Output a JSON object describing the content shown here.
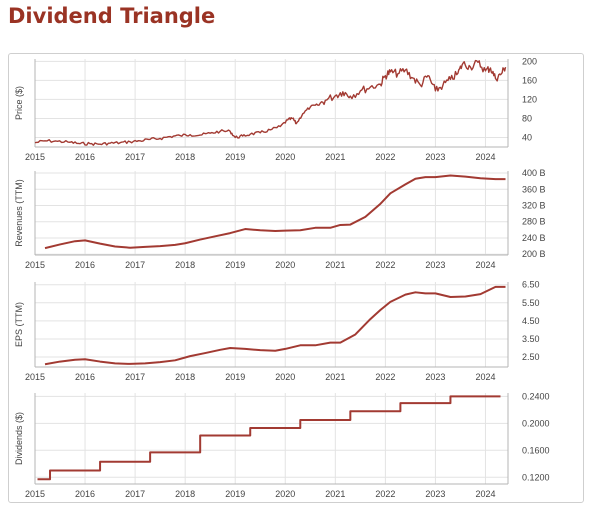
{
  "page": {
    "title": "Dividend Triangle"
  },
  "colors": {
    "accent": "#9a3324",
    "line": "#a23a32",
    "grid": "#e3e3e3",
    "axis": "#b5b5b5"
  },
  "x_ticks": [
    "2015",
    "2016",
    "2017",
    "2018",
    "2019",
    "2020",
    "2021",
    "2022",
    "2023",
    "2024"
  ],
  "chart_data": [
    {
      "type": "line",
      "id": "price",
      "ylabel": "Price ($)",
      "xlim": [
        2015.0,
        2024.45
      ],
      "ylim": [
        20,
        205
      ],
      "yticks": [
        40,
        80,
        120,
        160,
        200
      ],
      "yticklabels": [
        "40",
        "80",
        "120",
        "160",
        "200"
      ],
      "x": [
        2015.0,
        2015.2,
        2015.45,
        2015.7,
        2015.9,
        2016.1,
        2016.3,
        2016.5,
        2016.7,
        2016.9,
        2017.1,
        2017.3,
        2017.5,
        2017.7,
        2017.9,
        2018.1,
        2018.3,
        2018.5,
        2018.7,
        2018.9,
        2019.0,
        2019.15,
        2019.3,
        2019.5,
        2019.7,
        2019.9,
        2020.05,
        2020.15,
        2020.22,
        2020.35,
        2020.5,
        2020.65,
        2020.8,
        2021.0,
        2021.15,
        2021.3,
        2021.5,
        2021.7,
        2021.9,
        2022.0,
        2022.1,
        2022.25,
        2022.4,
        2022.55,
        2022.7,
        2022.85,
        2023.0,
        2023.15,
        2023.3,
        2023.45,
        2023.55,
        2023.7,
        2023.85,
        2024.0,
        2024.1,
        2024.2,
        2024.3,
        2024.4
      ],
      "y": [
        29,
        33,
        32,
        30,
        27,
        27,
        26,
        28,
        29,
        31,
        33,
        36,
        38,
        42,
        44,
        46,
        45,
        49,
        53,
        53,
        40,
        43,
        47,
        50,
        56,
        63,
        77,
        80,
        69,
        90,
        104,
        108,
        118,
        128,
        136,
        127,
        138,
        146,
        152,
        170,
        178,
        174,
        182,
        165,
        150,
        170,
        138,
        150,
        162,
        175,
        196,
        188,
        198,
        180,
        186,
        164,
        172,
        188
      ]
    },
    {
      "type": "line",
      "id": "revenues",
      "ylabel": "Revenues (TTM)",
      "xlim": [
        2015.0,
        2024.45
      ],
      "ylim": [
        198,
        405
      ],
      "yticks": [
        200,
        240,
        280,
        320,
        360,
        400
      ],
      "yticklabels": [
        "200 B",
        "240 B",
        "280 B",
        "320 B",
        "360 B",
        "400 B"
      ],
      "x": [
        2015.2,
        2015.5,
        2015.8,
        2016.0,
        2016.3,
        2016.6,
        2016.9,
        2017.2,
        2017.5,
        2017.8,
        2018.0,
        2018.3,
        2018.6,
        2018.9,
        2019.2,
        2019.5,
        2019.8,
        2020.0,
        2020.3,
        2020.6,
        2020.9,
        2021.1,
        2021.3,
        2021.6,
        2021.9,
        2022.1,
        2022.4,
        2022.6,
        2022.8,
        2023.0,
        2023.3,
        2023.6,
        2023.9,
        2024.2,
        2024.4
      ],
      "y": [
        215,
        224,
        232,
        234,
        226,
        219,
        216,
        218,
        220,
        223,
        227,
        236,
        244,
        252,
        262,
        259,
        257,
        258,
        259,
        265,
        265,
        272,
        273,
        292,
        324,
        350,
        372,
        386,
        390,
        390,
        394,
        391,
        387,
        385,
        385
      ]
    },
    {
      "type": "line",
      "id": "eps",
      "ylabel": "EPS (TTM)",
      "xlim": [
        2015.0,
        2024.45
      ],
      "ylim": [
        1.95,
        6.65
      ],
      "yticks": [
        2.5,
        3.5,
        4.5,
        5.5,
        6.5
      ],
      "yticklabels": [
        "2.50",
        "3.50",
        "4.50",
        "5.50",
        "6.50"
      ],
      "x": [
        2015.2,
        2015.5,
        2015.8,
        2016.0,
        2016.3,
        2016.6,
        2016.9,
        2017.2,
        2017.5,
        2017.8,
        2018.1,
        2018.4,
        2018.7,
        2018.9,
        2019.2,
        2019.5,
        2019.8,
        2020.0,
        2020.3,
        2020.6,
        2020.9,
        2021.1,
        2021.4,
        2021.7,
        2021.9,
        2022.1,
        2022.4,
        2022.6,
        2022.8,
        2023.0,
        2023.3,
        2023.6,
        2023.9,
        2024.2,
        2024.4
      ],
      "y": [
        2.1,
        2.25,
        2.35,
        2.38,
        2.25,
        2.15,
        2.12,
        2.15,
        2.22,
        2.32,
        2.55,
        2.72,
        2.9,
        3.0,
        2.95,
        2.88,
        2.85,
        2.95,
        3.15,
        3.15,
        3.3,
        3.3,
        3.75,
        4.6,
        5.1,
        5.55,
        5.95,
        6.08,
        6.02,
        6.02,
        5.82,
        5.85,
        5.98,
        6.38,
        6.38
      ]
    },
    {
      "type": "line",
      "id": "dividends",
      "step": true,
      "ylabel": "Dividends ($)",
      "xlim": [
        2015.0,
        2024.45
      ],
      "ylim": [
        0.11,
        0.245
      ],
      "yticks": [
        0.12,
        0.16,
        0.2,
        0.24
      ],
      "yticklabels": [
        "0.1200",
        "0.1600",
        "0.2000",
        "0.2400"
      ],
      "x": [
        2015.05,
        2015.3,
        2015.55,
        2016.1,
        2016.3,
        2016.6,
        2017.1,
        2017.3,
        2017.6,
        2018.1,
        2018.3,
        2018.6,
        2019.1,
        2019.3,
        2019.6,
        2020.1,
        2020.3,
        2020.6,
        2021.1,
        2021.3,
        2021.6,
        2022.1,
        2022.3,
        2022.6,
        2023.1,
        2023.3,
        2023.6,
        2024.1,
        2024.3
      ],
      "y": [
        0.117,
        0.13,
        0.13,
        0.13,
        0.143,
        0.143,
        0.143,
        0.157,
        0.157,
        0.157,
        0.182,
        0.182,
        0.182,
        0.193,
        0.193,
        0.193,
        0.205,
        0.205,
        0.205,
        0.218,
        0.218,
        0.218,
        0.23,
        0.23,
        0.23,
        0.24,
        0.24,
        0.24,
        0.24
      ]
    }
  ]
}
